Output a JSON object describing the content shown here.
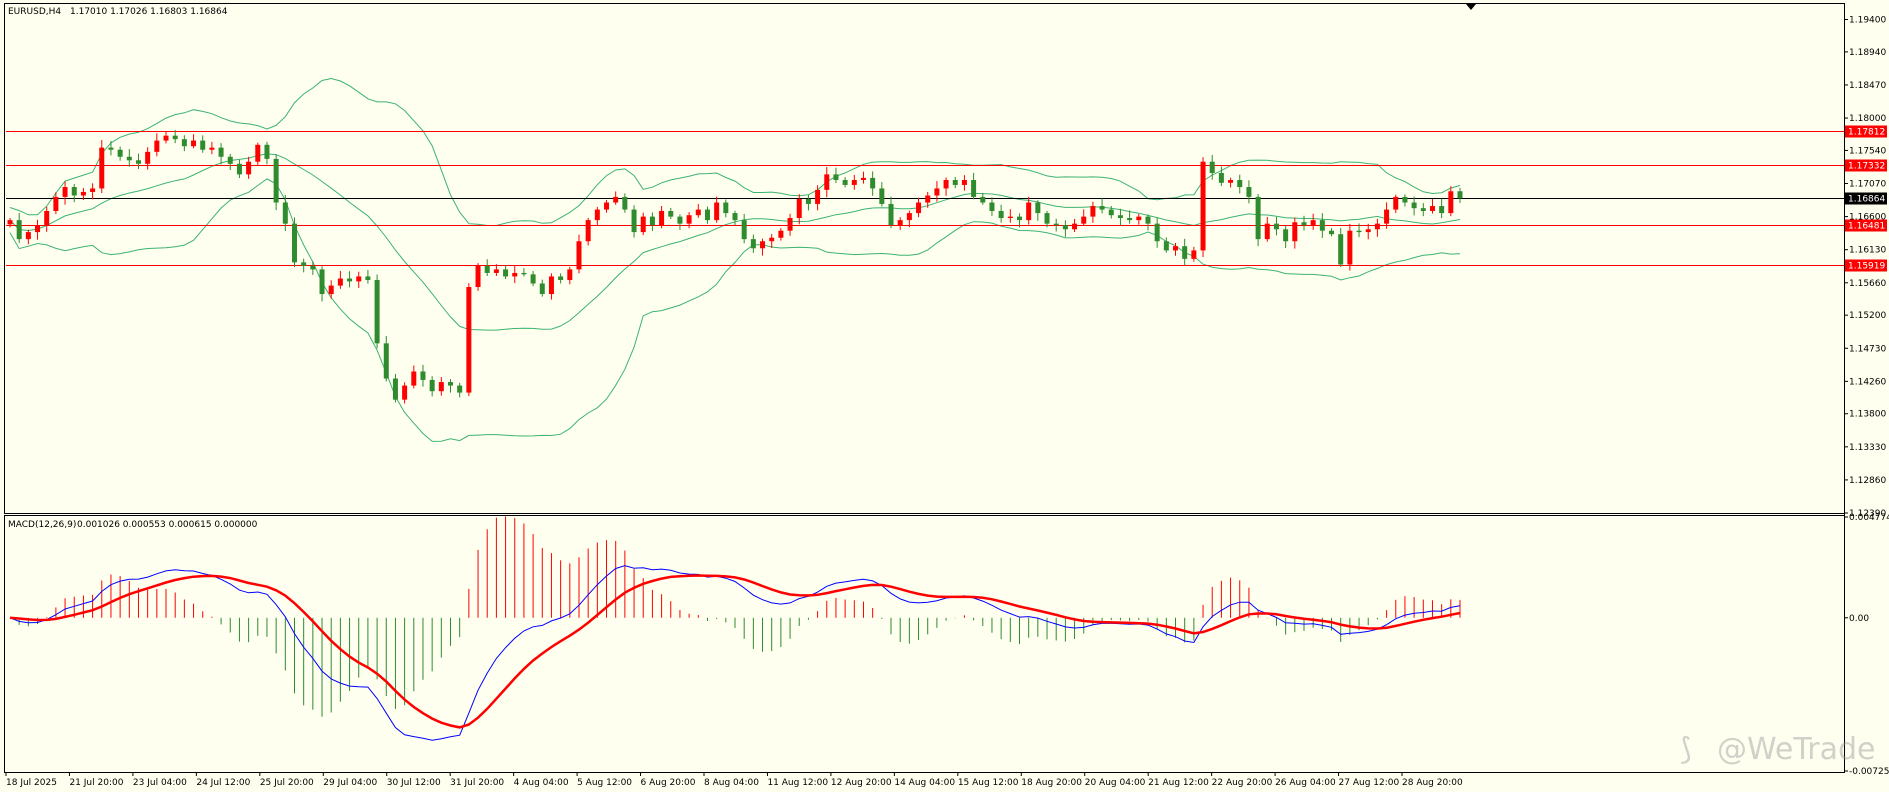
{
  "header": {
    "symbol": "EURUSD,H4",
    "ohlc": "1.17010 1.17026 1.16803 1.16864"
  },
  "macd_header": {
    "label": "MACD(12,26,9)",
    "values": "0.001026 0.000553 0.000615 0.000000"
  },
  "watermark": "@WeTrade",
  "colors": {
    "background": "#fffff0",
    "bull": "#ff0000",
    "bear": "#2e8b2e",
    "bands": "#3cb371",
    "level": "#ff0000",
    "current_price_tag": "#000000",
    "macd_line": "#0000ff",
    "signal_line": "#ff0000",
    "hist_positive": "#ff0000",
    "hist_negative": "#2e8b2e"
  },
  "price_axis": {
    "ticks": [
      "1.19400",
      "1.18940",
      "1.18470",
      "1.18000",
      "1.17540",
      "1.17070",
      "1.16600",
      "1.16130",
      "1.15660",
      "1.15200",
      "1.14730",
      "1.14260",
      "1.13800",
      "1.13330",
      "1.12860",
      "1.12390"
    ],
    "levels": [
      {
        "label": "1.17812",
        "value": 1.17812,
        "style": "red"
      },
      {
        "label": "1.17332",
        "value": 1.17332,
        "style": "red"
      },
      {
        "label": "1.16864",
        "value": 1.16864,
        "style": "current"
      },
      {
        "label": "1.16481",
        "value": 1.16481,
        "style": "red"
      },
      {
        "label": "1.15919",
        "value": 1.15919,
        "style": "red"
      }
    ]
  },
  "macd_axis": {
    "ticks": [
      "0.004774",
      "0.00",
      "-0.007257"
    ]
  },
  "time_axis": {
    "labels": [
      "18 Jul 2025",
      "21 Jul 20:00",
      "23 Jul 04:00",
      "24 Jul 12:00",
      "25 Jul 20:00",
      "29 Jul 04:00",
      "30 Jul 12:00",
      "31 Jul 20:00",
      "4 Aug 04:00",
      "5 Aug 12:00",
      "6 Aug 20:00",
      "8 Aug 04:00",
      "11 Aug 12:00",
      "12 Aug 20:00",
      "14 Aug 04:00",
      "15 Aug 12:00",
      "18 Aug 20:00",
      "20 Aug 04:00",
      "21 Aug 12:00",
      "22 Aug 20:00",
      "26 Aug 04:00",
      "27 Aug 12:00",
      "28 Aug 20:00"
    ]
  },
  "chart_data": [
    {
      "type": "candlestick",
      "title": "EURUSD,H4",
      "ylim": [
        1.1239,
        1.1962
      ],
      "price_path": [
        1.1655,
        1.1628,
        1.1638,
        1.1648,
        1.1668,
        1.1688,
        1.1702,
        1.169,
        1.1695,
        1.17,
        1.1758,
        1.1755,
        1.1745,
        1.174,
        1.1735,
        1.1752,
        1.1768,
        1.1775,
        1.177,
        1.176,
        1.1768,
        1.1755,
        1.1758,
        1.1745,
        1.1735,
        1.172,
        1.1738,
        1.1762,
        1.1742,
        1.168,
        1.165,
        1.1595,
        1.159,
        1.1585,
        1.155,
        1.1562,
        1.1572,
        1.1568,
        1.1575,
        1.157,
        1.148,
        1.143,
        1.14,
        1.142,
        1.144,
        1.1428,
        1.1412,
        1.1425,
        1.142,
        1.141,
        1.156,
        1.159,
        1.158,
        1.1585,
        1.1575,
        1.158,
        1.1578,
        1.1565,
        1.155,
        1.1575,
        1.157,
        1.1585,
        1.1625,
        1.1655,
        1.167,
        1.168,
        1.1688,
        1.167,
        1.1638,
        1.166,
        1.1648,
        1.1668,
        1.166,
        1.165,
        1.1662,
        1.167,
        1.1655,
        1.168,
        1.1665,
        1.1655,
        1.1628,
        1.1615,
        1.1625,
        1.163,
        1.164,
        1.1658,
        1.1685,
        1.1678,
        1.1698,
        1.172,
        1.1712,
        1.1705,
        1.1712,
        1.1715,
        1.17,
        1.1678,
        1.1648,
        1.1655,
        1.1665,
        1.168,
        1.169,
        1.17,
        1.1712,
        1.1705,
        1.1712,
        1.1688,
        1.168,
        1.1668,
        1.1658,
        1.166,
        1.1655,
        1.168,
        1.1665,
        1.165,
        1.1648,
        1.1642,
        1.165,
        1.166,
        1.1675,
        1.167,
        1.1662,
        1.1658,
        1.1655,
        1.166,
        1.165,
        1.1625,
        1.1612,
        1.1618,
        1.16,
        1.1612,
        1.1738,
        1.1722,
        1.1708,
        1.1712,
        1.1702,
        1.1688,
        1.1628,
        1.165,
        1.1642,
        1.1625,
        1.1652,
        1.1648,
        1.1655,
        1.164,
        1.1635,
        1.1592,
        1.164,
        1.1638,
        1.1642,
        1.165,
        1.167,
        1.1688,
        1.168,
        1.1672,
        1.1668,
        1.1675,
        1.1665,
        1.1696,
        1.1686
      ]
    },
    {
      "type": "line",
      "title": "MACD(12,26,9)",
      "ylim": [
        -0.007257,
        0.004774
      ],
      "series": [
        {
          "name": "MACD(12,26,9)",
          "values": []
        },
        {
          "name": "signal",
          "values": []
        },
        {
          "name": "histogram",
          "values": []
        }
      ]
    }
  ]
}
